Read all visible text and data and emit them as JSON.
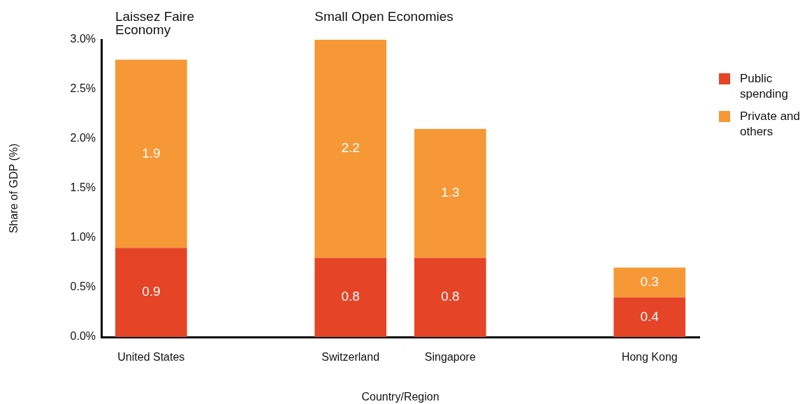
{
  "chart_data": {
    "type": "bar",
    "stacked": true,
    "categories": [
      "United States",
      null,
      "Switzerland",
      "Singapore",
      null,
      "Hong Kong"
    ],
    "series": [
      {
        "name": "Public spending",
        "color": "#e54427",
        "values": [
          0.9,
          null,
          0.8,
          0.8,
          null,
          0.4
        ]
      },
      {
        "name": "Private and others",
        "color": "#f69836",
        "values": [
          1.9,
          null,
          2.2,
          1.3,
          null,
          0.3
        ]
      }
    ],
    "xlabel": "Country/Region",
    "ylabel": "Share of GDP (%)",
    "ylim": [
      0,
      3
    ],
    "yticks": [
      {
        "value": 0,
        "label": "0.0%"
      },
      {
        "value": 0.5,
        "label": "0.5%"
      },
      {
        "value": 1,
        "label": "1.0%"
      },
      {
        "value": 1.5,
        "label": "1.5%"
      },
      {
        "value": 2,
        "label": "2.0%"
      },
      {
        "value": 2.5,
        "label": "2.5%"
      },
      {
        "value": 3,
        "label": "3.0%"
      }
    ],
    "annotations": [
      "Laissez Faire\nEconomy",
      "Small Open Economies"
    ],
    "data_labels": true,
    "grid": false,
    "legend": "right"
  }
}
